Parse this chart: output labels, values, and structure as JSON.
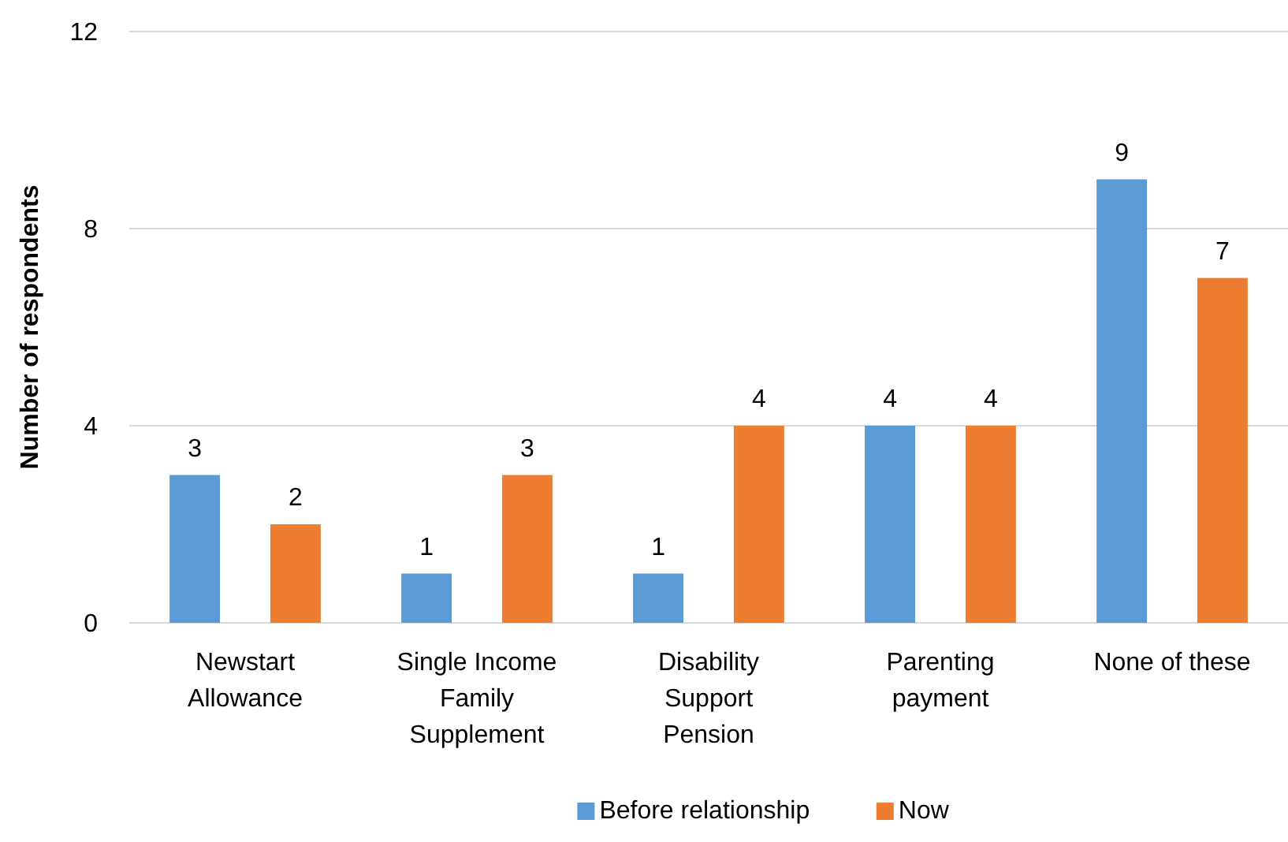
{
  "chart_data": {
    "type": "bar",
    "ylabel": "Number of respondents",
    "categories": [
      "Newstart Allowance",
      "Single Income Family Supplement",
      "Disability Support Pension",
      "Parenting payment",
      "None of these"
    ],
    "series": [
      {
        "name": "Before relationship",
        "color": "#5b9bd5",
        "values": [
          3,
          1,
          1,
          4,
          9
        ]
      },
      {
        "name": "Now",
        "color": "#ed7d31",
        "values": [
          2,
          3,
          4,
          4,
          7
        ]
      }
    ],
    "ylim": [
      0,
      12
    ],
    "yticks": [
      0,
      4,
      8,
      12
    ],
    "grid": "y",
    "legend": "bottom",
    "data_labels": true
  }
}
